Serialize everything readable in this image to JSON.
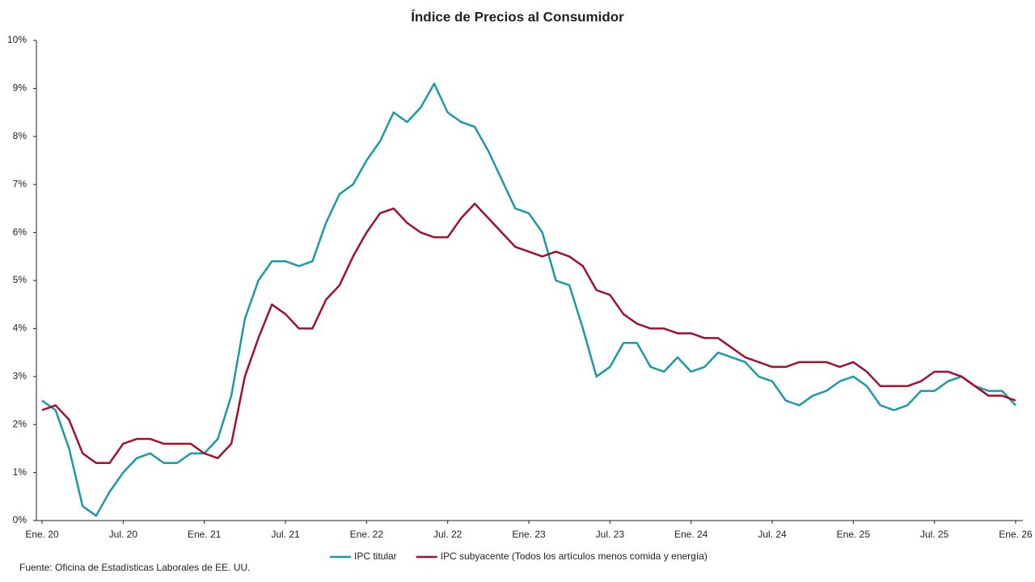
{
  "chart_data": {
    "type": "line",
    "title": "Índice de Precios al Consumidor",
    "source": "Fuente: Oficina de Estadísticas Laborales de EE. UU.",
    "categories": [
      "Ene. 20",
      null,
      null,
      null,
      null,
      null,
      "Jul. 20",
      null,
      null,
      null,
      null,
      null,
      "Ene. 21",
      null,
      null,
      null,
      null,
      null,
      "Jul. 21",
      null,
      null,
      null,
      null,
      null,
      "Ene. 22",
      null,
      null,
      null,
      null,
      null,
      "Jul. 22",
      null,
      null,
      null,
      null,
      null,
      "Ene. 23",
      null,
      null,
      null,
      null,
      null,
      "Jul. 23",
      null,
      null,
      null,
      null,
      null,
      "Ene. 24",
      null,
      null,
      null,
      null,
      null,
      "Jul. 24",
      null,
      null,
      null,
      null,
      null,
      "Ene. 25",
      null,
      null,
      null,
      null,
      null,
      "Jul. 25",
      null,
      null,
      null,
      null,
      null,
      "Ene. 26"
    ],
    "series": [
      {
        "name": "IPC titular",
        "color": "#1b9aa6",
        "values": [
          2.5,
          2.3,
          1.5,
          0.3,
          0.1,
          0.6,
          1.0,
          1.3,
          1.4,
          1.2,
          1.2,
          1.4,
          1.4,
          1.7,
          2.6,
          4.2,
          5.0,
          5.4,
          5.4,
          5.3,
          5.4,
          6.2,
          6.8,
          7.0,
          7.5,
          7.9,
          8.5,
          8.3,
          8.6,
          9.1,
          8.5,
          8.3,
          8.2,
          7.7,
          7.1,
          6.5,
          6.4,
          6.0,
          5.0,
          4.9,
          4.0,
          3.0,
          3.2,
          3.7,
          3.7,
          3.2,
          3.1,
          3.4,
          3.1,
          3.2,
          3.5,
          3.4,
          3.3,
          3.0,
          2.9,
          2.5,
          2.4,
          2.6,
          2.7,
          2.9,
          3.0,
          2.8,
          2.4,
          2.3,
          2.4,
          2.7,
          2.7,
          2.9,
          3.0,
          2.8,
          2.7,
          2.7,
          2.4
        ]
      },
      {
        "name": "IPC subyacente (Todos los artículos menos comida y energía)",
        "color": "#a0112f",
        "values": [
          2.3,
          2.4,
          2.1,
          1.4,
          1.2,
          1.2,
          1.6,
          1.7,
          1.7,
          1.6,
          1.6,
          1.6,
          1.4,
          1.3,
          1.6,
          3.0,
          3.8,
          4.5,
          4.3,
          4.0,
          4.0,
          4.6,
          4.9,
          5.5,
          6.0,
          6.4,
          6.5,
          6.2,
          6.0,
          5.9,
          5.9,
          6.3,
          6.6,
          6.3,
          6.0,
          5.7,
          5.6,
          5.5,
          5.6,
          5.5,
          5.3,
          4.8,
          4.7,
          4.3,
          4.1,
          4.0,
          4.0,
          3.9,
          3.9,
          3.8,
          3.8,
          3.6,
          3.4,
          3.3,
          3.2,
          3.2,
          3.3,
          3.3,
          3.3,
          3.2,
          3.3,
          3.1,
          2.8,
          2.8,
          2.8,
          2.9,
          3.1,
          3.1,
          3.0,
          2.8,
          2.6,
          2.6,
          2.5
        ]
      }
    ],
    "ylim": [
      0,
      10
    ],
    "yticks": [
      {
        "value": 0,
        "label": "0%"
      },
      {
        "value": 1,
        "label": "1%"
      },
      {
        "value": 2,
        "label": "2%"
      },
      {
        "value": 3,
        "label": "3%"
      },
      {
        "value": 4,
        "label": "4%"
      },
      {
        "value": 5,
        "label": "5%"
      },
      {
        "value": 6,
        "label": "6%"
      },
      {
        "value": 7,
        "label": "7%"
      },
      {
        "value": 8,
        "label": "8%"
      },
      {
        "value": 9,
        "label": "9%"
      },
      {
        "value": 10,
        "label": "10%"
      }
    ],
    "grid": false,
    "legend": "bottom"
  }
}
